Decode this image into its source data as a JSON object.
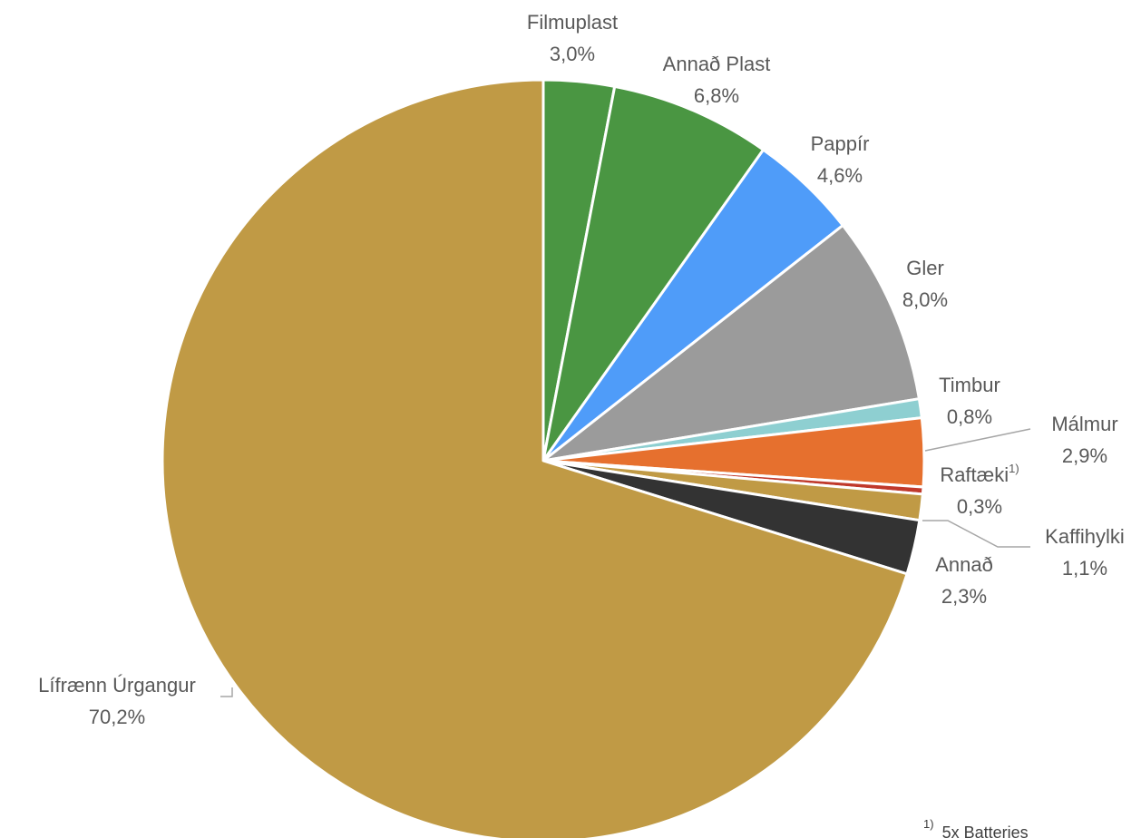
{
  "chart_data": {
    "type": "pie",
    "title": "",
    "slices": [
      {
        "label": "Filmuplast",
        "value": 3.0,
        "value_label": "3,0%",
        "color": "#4a9642"
      },
      {
        "label": "Annað Plast",
        "value": 6.8,
        "value_label": "6,8%",
        "color": "#4a9642"
      },
      {
        "label": "Pappír",
        "value": 4.6,
        "value_label": "4,6%",
        "color": "#4f9cf9"
      },
      {
        "label": "Gler",
        "value": 8.0,
        "value_label": "8,0%",
        "color": "#9b9b9b"
      },
      {
        "label": "Timbur",
        "value": 0.8,
        "value_label": "0,8%",
        "color": "#8ecfd1"
      },
      {
        "label": "Málmur",
        "value": 2.9,
        "value_label": "2,9%",
        "color": "#e6702e"
      },
      {
        "label": "Raftæki",
        "label_sup": "1)",
        "value": 0.3,
        "value_label": "0,3%",
        "color": "#c0392b"
      },
      {
        "label": "Kaffihylki",
        "value": 1.1,
        "value_label": "1,1%",
        "color": "#c09a45"
      },
      {
        "label": "Annað",
        "value": 2.3,
        "value_label": "2,3%",
        "color": "#333333"
      },
      {
        "label": "Lífrænn Úrgangur",
        "value": 70.2,
        "value_label": "70,2%",
        "color": "#c09a45"
      }
    ],
    "footnote": {
      "marker": "1)",
      "text": "5x Batteries"
    }
  }
}
